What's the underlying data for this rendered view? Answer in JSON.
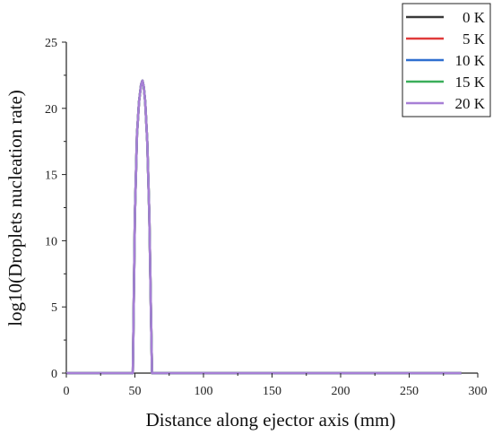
{
  "chart_data": {
    "type": "line",
    "xlabel": "Distance along ejector axis (mm)",
    "ylabel": "log10(Droplets nucleation rate)",
    "xlim": [
      0,
      300
    ],
    "ylim": [
      0,
      25
    ],
    "x_ticks": [
      0,
      50,
      100,
      150,
      200,
      250,
      300
    ],
    "y_ticks": [
      0,
      5,
      10,
      15,
      20,
      25
    ],
    "grid": false,
    "legend_position": "top-right",
    "x": [
      0,
      48,
      48.5,
      50,
      51.5,
      53,
      54.5,
      55.5,
      56.5,
      57.5,
      59,
      60.5,
      61.8,
      62.5,
      63,
      100,
      150,
      200,
      250,
      288
    ],
    "series": [
      {
        "name": "0 K",
        "color": "#3a3a3a",
        "values": [
          0,
          0,
          0,
          12,
          18,
          20.5,
          21.8,
          22.1,
          21.6,
          20.5,
          17.5,
          12,
          4,
          0,
          0,
          0,
          0,
          0,
          0,
          0
        ]
      },
      {
        "name": "5 K",
        "color": "#e03a3a",
        "values": [
          0,
          0,
          0,
          12,
          18,
          20.5,
          21.8,
          22.1,
          21.6,
          20.5,
          17.5,
          12,
          4,
          0,
          0,
          0,
          0,
          0,
          0,
          0
        ]
      },
      {
        "name": "10 K",
        "color": "#2f6fd0",
        "values": [
          0,
          0,
          0,
          12,
          18,
          20.5,
          21.8,
          22.1,
          21.6,
          20.5,
          17.5,
          12,
          4,
          0,
          0,
          0,
          0,
          0,
          0,
          0
        ]
      },
      {
        "name": "15 K",
        "color": "#3aae5a",
        "values": [
          0,
          0,
          0,
          12,
          18,
          20.5,
          21.8,
          22.1,
          21.6,
          20.5,
          17.5,
          12,
          4,
          0,
          0,
          0,
          0,
          0,
          0,
          0
        ]
      },
      {
        "name": "20 K",
        "color": "#a77fd6",
        "values": [
          0,
          0,
          0,
          12,
          18,
          20.5,
          21.8,
          22.1,
          21.6,
          20.5,
          17.5,
          12,
          4,
          0,
          0,
          0,
          0,
          0,
          0,
          0
        ]
      }
    ]
  }
}
